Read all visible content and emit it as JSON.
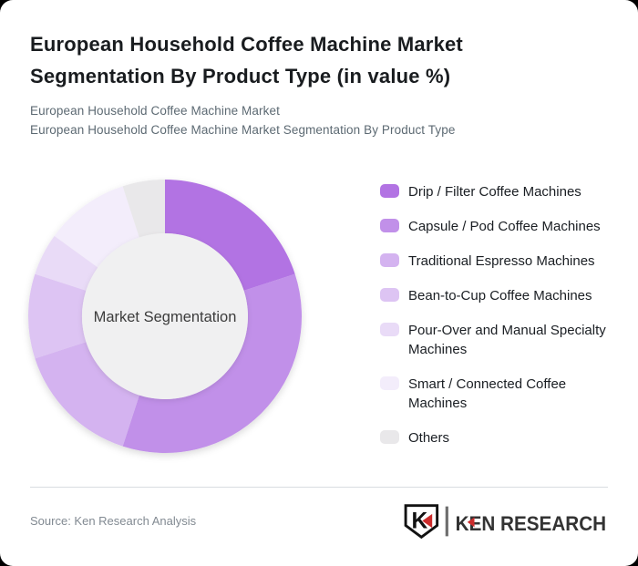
{
  "header": {
    "title": "European Household Coffee Machine Market Segmentation By Product Type (in value %)",
    "subtitle1": "European Household Coffee Machine Market",
    "subtitle2": "European Household Coffee Machine Market Segmentation By Product Type"
  },
  "chart_data": {
    "type": "pie",
    "variant": "donut",
    "title": "European Household Coffee Machine Market Segmentation By Product Type (in value %)",
    "center_label": "Market Segmentation",
    "legend_position": "right",
    "data_labels_shown": false,
    "values_note": "no numeric labels shown in figure; percentages estimated from arc angles",
    "start_angle_deg": 0,
    "direction": "clockwise",
    "inner_radius_ratio": 0.6,
    "categories": [
      "Drip / Filter Coffee Machines",
      "Capsule / Pod Coffee Machines",
      "Traditional Espresso Machines",
      "Bean-to-Cup Coffee Machines",
      "Pour-Over and Manual Specialty Machines",
      "Smart / Connected Coffee Machines",
      "Others"
    ],
    "values": [
      20,
      35,
      15,
      10,
      5,
      10,
      5
    ],
    "colors": [
      "#b273e3",
      "#c190e9",
      "#d4b3f0",
      "#ddc4f3",
      "#e9dbf7",
      "#f3edfb",
      "#e9e8ea"
    ],
    "inner_circle_color": "#f0f0f1",
    "center_label_color": "#3c3c3c"
  },
  "footer": {
    "source": "Source: Ken Research Analysis",
    "brand": "KEN RESEARCH",
    "brand_initial": "K",
    "brand_accent_color": "#cc2c2c"
  }
}
